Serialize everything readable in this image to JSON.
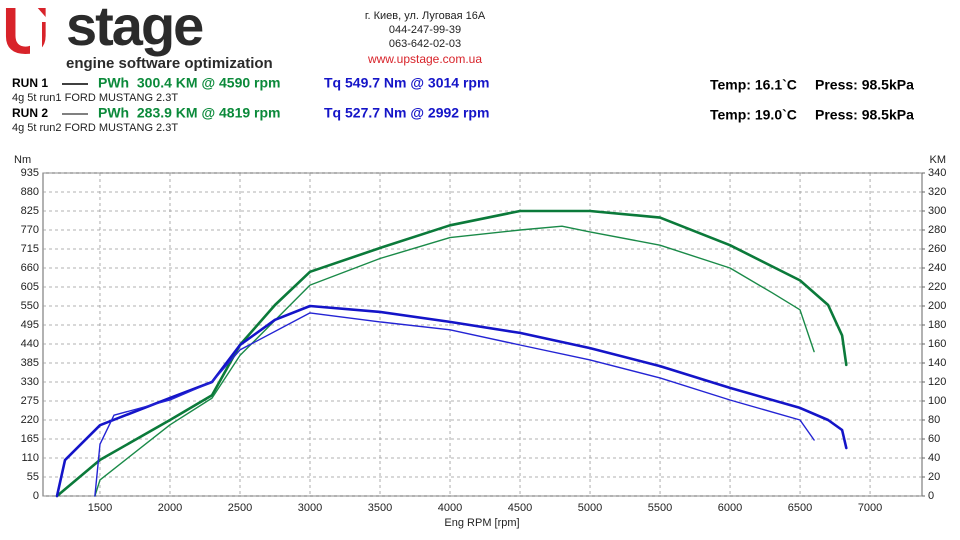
{
  "header": {
    "logo_mark": "U",
    "logo_text": "stage",
    "tagline": "engine software optimization",
    "address": "г. Киев, ул. Луговая 16А",
    "phone1": "044-247-99-39",
    "phone2": "063-642-02-03",
    "website": "www.upstage.com.ua"
  },
  "runs": [
    {
      "label": "RUN 1",
      "power": "PWh  300.4 KM @ 4590 rpm",
      "torque": "Tq 549.7 Nm @ 3014 rpm",
      "description": "4g 5t run1 FORD MUSTANG 2.3T",
      "temp": "Temp: 16.1`C",
      "press": "Press: 98.5kPa"
    },
    {
      "label": "RUN 2",
      "power": "PWh  283.9 KM @ 4819 rpm",
      "torque": "Tq 527.7 Nm @ 2992 rpm",
      "description": "4g 5t run2 FORD MUSTANG 2.3T",
      "temp": "Temp: 19.0`C",
      "press": "Press: 98.5kPa"
    }
  ],
  "chart_data": {
    "type": "line",
    "x_label": "Eng RPM [rpm]",
    "y_label": "Nm",
    "y2_label": "KM",
    "xlim": [
      1093,
      7371
    ],
    "xticks": [
      1500,
      2000,
      2500,
      3000,
      3500,
      4000,
      4500,
      5000,
      5500,
      6000,
      6500,
      7000
    ],
    "ylim": [
      0,
      935
    ],
    "yticks": [
      0,
      55,
      110,
      165,
      220,
      275,
      330,
      385,
      440,
      495,
      550,
      605,
      660,
      715,
      770,
      825,
      880,
      935
    ],
    "y2lim": [
      0,
      340
    ],
    "y2ticks": [
      0,
      20,
      40,
      60,
      80,
      100,
      120,
      140,
      160,
      180,
      200,
      220,
      240,
      260,
      280,
      300,
      320,
      340
    ],
    "grid": true,
    "series": [
      {
        "color": "#0b7a3a",
        "line_width": 2.6,
        "axis": "y2",
        "x": [
          1193,
          1500,
          2000,
          2300,
          2500,
          2750,
          3000,
          3500,
          4000,
          4500,
          5000,
          5500,
          6000,
          6500,
          6700,
          6800,
          6830
        ],
        "values": [
          0,
          38,
          80,
          106,
          159,
          201,
          236,
          261,
          285,
          300,
          300,
          293,
          264,
          227,
          201,
          169,
          138
        ]
      },
      {
        "color": "#1a8a48",
        "line_width": 1.4,
        "axis": "y2",
        "x": [
          1464,
          1500,
          2000,
          2300,
          2500,
          3000,
          3500,
          4000,
          4500,
          4800,
          5000,
          5500,
          6000,
          6300,
          6500,
          6600
        ],
        "values": [
          0,
          17,
          75,
          103,
          148,
          222,
          250,
          272,
          280,
          284,
          278,
          264,
          240,
          214,
          196,
          152
        ]
      },
      {
        "color": "#1414c8",
        "line_width": 2.6,
        "x": [
          1193,
          1250,
          1500,
          2000,
          2300,
          2500,
          2750,
          3000,
          3500,
          4000,
          4500,
          5000,
          5500,
          6000,
          6500,
          6700,
          6800,
          6830
        ],
        "values": [
          0,
          104,
          205,
          284,
          330,
          437,
          510,
          550,
          533,
          504,
          472,
          428,
          376,
          313,
          255,
          220,
          191,
          139
        ]
      },
      {
        "color": "#2424d4",
        "line_width": 1.4,
        "x": [
          1464,
          1500,
          1600,
          2000,
          2300,
          2500,
          3000,
          3500,
          4000,
          4500,
          5000,
          5500,
          6000,
          6500,
          6600
        ],
        "values": [
          0,
          150,
          234,
          278,
          330,
          423,
          530,
          504,
          481,
          437,
          394,
          342,
          278,
          220,
          162
        ]
      }
    ]
  }
}
